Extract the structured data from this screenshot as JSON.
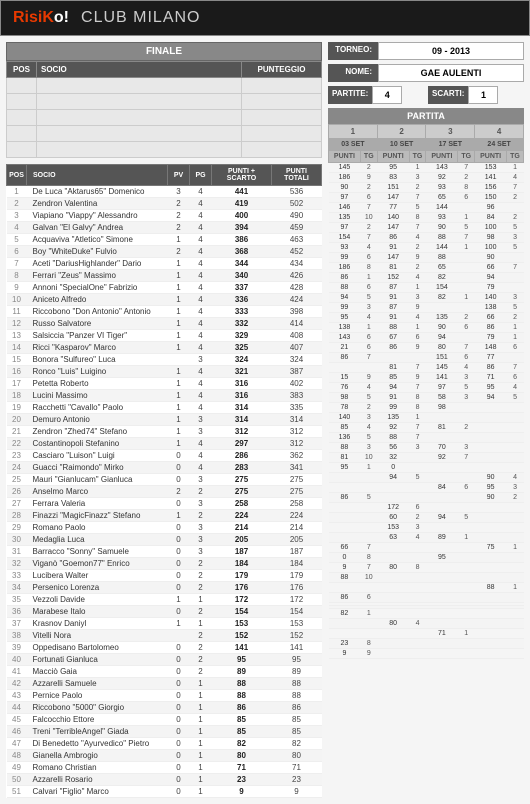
{
  "header": {
    "logo_pre": "Risi",
    "logo_k": "K",
    "logo_post": "o!",
    "club": "CLUB MILANO"
  },
  "finale": {
    "title": "FINALE",
    "cols": [
      "POS",
      "SOCIO",
      "PUNTEGGIO"
    ]
  },
  "torneo": {
    "label": "TORNEO:",
    "value": "09 - 2013"
  },
  "nome": {
    "label": "NOME:",
    "value": "GAE AULENTI"
  },
  "partite": {
    "label": "PARTITE:",
    "value": "4"
  },
  "scarti": {
    "label": "SCARTI:",
    "value": "1"
  },
  "main_cols": [
    "POS",
    "SOCIO",
    "PV",
    "PG",
    "PUNTI + SCARTO",
    "PUNTI TOTALI"
  ],
  "partita": {
    "title": "PARTITA",
    "nums": [
      "1",
      "2",
      "3",
      "4"
    ],
    "dates": [
      "03 SET",
      "10 SET",
      "17 SET",
      "24 SET"
    ],
    "sub": [
      "PUNTI",
      "TG"
    ]
  },
  "rows": [
    {
      "pos": 1,
      "socio": "De Luca \"Aktarus65\" Domenico",
      "pv": 3,
      "pg": 4,
      "ps": 441,
      "pt": 536,
      "p": [
        [
          145,
          2
        ],
        [
          95,
          1
        ],
        [
          143,
          7
        ],
        [
          153,
          1
        ]
      ]
    },
    {
      "pos": 2,
      "socio": "Zendron Valentina",
      "pv": 2,
      "pg": 4,
      "ps": 419,
      "pt": 502,
      "p": [
        [
          186,
          9
        ],
        [
          83,
          3
        ],
        [
          92,
          2
        ],
        [
          141,
          4
        ]
      ]
    },
    {
      "pos": 3,
      "socio": "Viapiano \"Viappy\" Alessandro",
      "pv": 2,
      "pg": 4,
      "ps": 400,
      "pt": 490,
      "p": [
        [
          90,
          2
        ],
        [
          151,
          2
        ],
        [
          93,
          8
        ],
        [
          156,
          7
        ]
      ]
    },
    {
      "pos": 4,
      "socio": "Galvan \"El Galvy\" Andrea",
      "pv": 2,
      "pg": 4,
      "ps": 394,
      "pt": 459,
      "p": [
        [
          97,
          6
        ],
        [
          147,
          7
        ],
        [
          65,
          6
        ],
        [
          150,
          2
        ]
      ]
    },
    {
      "pos": 5,
      "socio": "Acquaviva \"Atletico\" Simone",
      "pv": 1,
      "pg": 4,
      "ps": 386,
      "pt": 463,
      "p": [
        [
          146,
          7
        ],
        [
          77,
          5
        ],
        [
          144,
          ""
        ],
        [
          96,
          ""
        ]
      ]
    },
    {
      "pos": 6,
      "socio": "Boy \"WhiteDuke\" Fulvio",
      "pv": 2,
      "pg": 4,
      "ps": 368,
      "pt": 452,
      "p": [
        [
          135,
          10
        ],
        [
          140,
          8
        ],
        [
          93,
          1
        ],
        [
          84,
          2
        ]
      ]
    },
    {
      "pos": 7,
      "socio": "Aceti \"DariusHighlander\" Dario",
      "pv": 1,
      "pg": 4,
      "ps": 344,
      "pt": 434,
      "p": [
        [
          97,
          2
        ],
        [
          147,
          7
        ],
        [
          90,
          5
        ],
        [
          100,
          5
        ]
      ]
    },
    {
      "pos": 8,
      "socio": "Ferrari \"Zeus\" Massimo",
      "pv": 1,
      "pg": 4,
      "ps": 340,
      "pt": 426,
      "p": [
        [
          154,
          7
        ],
        [
          86,
          4
        ],
        [
          88,
          7
        ],
        [
          98,
          3
        ]
      ]
    },
    {
      "pos": 9,
      "socio": "Annoni \"SpecialOne\" Fabrizio",
      "pv": 1,
      "pg": 4,
      "ps": 337,
      "pt": 428,
      "p": [
        [
          93,
          4
        ],
        [
          91,
          2
        ],
        [
          144,
          1
        ],
        [
          100,
          5
        ]
      ]
    },
    {
      "pos": 10,
      "socio": "Aniceto Alfredo",
      "pv": 1,
      "pg": 4,
      "ps": 336,
      "pt": 424,
      "p": [
        [
          99,
          6
        ],
        [
          147,
          9
        ],
        [
          88,
          ""
        ],
        [
          90,
          ""
        ]
      ]
    },
    {
      "pos": 11,
      "socio": "Riccobono \"Don Antonio\" Antonio",
      "pv": 1,
      "pg": 4,
      "ps": 333,
      "pt": 398,
      "p": [
        [
          186,
          8
        ],
        [
          81,
          2
        ],
        [
          65,
          ""
        ],
        [
          66,
          7
        ]
      ]
    },
    {
      "pos": 12,
      "socio": "Russo Salvatore",
      "pv": 1,
      "pg": 4,
      "ps": 332,
      "pt": 414,
      "p": [
        [
          86,
          1
        ],
        [
          152,
          4
        ],
        [
          82,
          ""
        ],
        [
          94,
          ""
        ]
      ]
    },
    {
      "pos": 13,
      "socio": "Salsiccia \"Panzer VI Tiger\"",
      "pv": 1,
      "pg": 4,
      "ps": 329,
      "pt": 408,
      "p": [
        [
          88,
          6
        ],
        [
          87,
          1
        ],
        [
          154,
          ""
        ],
        [
          79,
          ""
        ]
      ]
    },
    {
      "pos": 14,
      "socio": "Ricci \"Kasparov\" Marco",
      "pv": 1,
      "pg": 4,
      "ps": 325,
      "pt": 407,
      "p": [
        [
          94,
          5
        ],
        [
          91,
          3
        ],
        [
          82,
          1
        ],
        [
          140,
          3
        ]
      ]
    },
    {
      "pos": 15,
      "socio": "Bonora \"Sulfureo\" Luca",
      "pv": "",
      "pg": 3,
      "ps": 324,
      "pt": 324,
      "p": [
        [
          99,
          3
        ],
        [
          87,
          9
        ],
        [
          "",
          ""
        ],
        [
          138,
          5
        ]
      ]
    },
    {
      "pos": 16,
      "socio": "Ronco \"Luis\" Luigino",
      "pv": 1,
      "pg": 4,
      "ps": 321,
      "pt": 387,
      "p": [
        [
          95,
          4
        ],
        [
          91,
          4
        ],
        [
          135,
          2
        ],
        [
          66,
          2
        ]
      ]
    },
    {
      "pos": 17,
      "socio": "Petetta Roberto",
      "pv": 1,
      "pg": 4,
      "ps": 316,
      "pt": 402,
      "p": [
        [
          138,
          1
        ],
        [
          88,
          1
        ],
        [
          90,
          6
        ],
        [
          86,
          1
        ]
      ]
    },
    {
      "pos": 18,
      "socio": "Lucini Massimo",
      "pv": 1,
      "pg": 4,
      "ps": 316,
      "pt": 383,
      "p": [
        [
          143,
          6
        ],
        [
          67,
          6
        ],
        [
          94,
          ""
        ],
        [
          79,
          1
        ]
      ]
    },
    {
      "pos": 19,
      "socio": "Racchetti \"Cavallo\" Paolo",
      "pv": 1,
      "pg": 4,
      "ps": 314,
      "pt": 335,
      "p": [
        [
          21,
          6
        ],
        [
          86,
          9
        ],
        [
          80,
          7
        ],
        [
          148,
          6
        ]
      ]
    },
    {
      "pos": 20,
      "socio": "Demuro Antonio",
      "pv": 1,
      "pg": 3,
      "ps": 314,
      "pt": 314,
      "p": [
        [
          86,
          7
        ],
        [
          "",
          ""
        ],
        [
          151,
          6
        ],
        [
          77,
          ""
        ]
      ]
    },
    {
      "pos": 21,
      "socio": "Zendron \"Zhed74\" Stefano",
      "pv": 1,
      "pg": 3,
      "ps": 312,
      "pt": 312,
      "p": [
        [
          "",
          ""
        ],
        [
          81,
          7
        ],
        [
          145,
          4
        ],
        [
          86,
          7
        ]
      ]
    },
    {
      "pos": 22,
      "socio": "Costantinopoli Stefanino",
      "pv": 1,
      "pg": 4,
      "ps": 297,
      "pt": 312,
      "p": [
        [
          15,
          9
        ],
        [
          85,
          9
        ],
        [
          141,
          3
        ],
        [
          71,
          6
        ]
      ]
    },
    {
      "pos": 23,
      "socio": "Casciaro \"Luison\" Luigi",
      "pv": 0,
      "pg": 4,
      "ps": 286,
      "pt": 362,
      "p": [
        [
          76,
          4
        ],
        [
          94,
          7
        ],
        [
          97,
          5
        ],
        [
          95,
          4
        ]
      ]
    },
    {
      "pos": 24,
      "socio": "Guacci \"Raimondo\" Mirko",
      "pv": 0,
      "pg": 4,
      "ps": 283,
      "pt": 341,
      "p": [
        [
          98,
          5
        ],
        [
          91,
          8
        ],
        [
          58,
          3
        ],
        [
          94,
          5
        ]
      ]
    },
    {
      "pos": 25,
      "socio": "Mauri \"Gianlucam\" Gianluca",
      "pv": 0,
      "pg": 3,
      "ps": 275,
      "pt": 275,
      "p": [
        [
          78,
          2
        ],
        [
          99,
          8
        ],
        [
          98,
          ""
        ],
        [
          "",
          ""
        ]
      ]
    },
    {
      "pos": 26,
      "socio": "Anselmo Marco",
      "pv": 2,
      "pg": 2,
      "ps": 275,
      "pt": 275,
      "p": [
        [
          140,
          3
        ],
        [
          135,
          1
        ],
        [
          "",
          ""
        ],
        [
          "",
          ""
        ]
      ]
    },
    {
      "pos": 27,
      "socio": "Ferrara Valeria",
      "pv": 0,
      "pg": 3,
      "ps": 258,
      "pt": 258,
      "p": [
        [
          85,
          4
        ],
        [
          92,
          7
        ],
        [
          81,
          2
        ],
        [
          "",
          ""
        ]
      ]
    },
    {
      "pos": 28,
      "socio": "Finazzi \"MagicFinazz\" Stefano",
      "pv": 1,
      "pg": 2,
      "ps": 224,
      "pt": 224,
      "p": [
        [
          136,
          5
        ],
        [
          88,
          7
        ],
        [
          "",
          ""
        ],
        [
          "",
          ""
        ]
      ]
    },
    {
      "pos": 29,
      "socio": "Romano Paolo",
      "pv": 0,
      "pg": 3,
      "ps": 214,
      "pt": 214,
      "p": [
        [
          88,
          3
        ],
        [
          56,
          3
        ],
        [
          70,
          3
        ],
        [
          "",
          ""
        ]
      ]
    },
    {
      "pos": 30,
      "socio": "Medaglia Luca",
      "pv": 0,
      "pg": 3,
      "ps": 205,
      "pt": 205,
      "p": [
        [
          81,
          10
        ],
        [
          32,
          ""
        ],
        [
          92,
          7
        ],
        [
          "",
          ""
        ]
      ]
    },
    {
      "pos": 31,
      "socio": "Barracco \"Sonny\" Samuele",
      "pv": 0,
      "pg": 3,
      "ps": 187,
      "pt": 187,
      "p": [
        [
          95,
          1
        ],
        [
          0,
          ""
        ],
        [
          "",
          ""
        ],
        [
          "",
          ""
        ]
      ]
    },
    {
      "pos": 32,
      "socio": "Viganò \"Goemon77\" Enrico",
      "pv": 0,
      "pg": 2,
      "ps": 184,
      "pt": 184,
      "p": [
        [
          "",
          ""
        ],
        [
          94,
          5
        ],
        [
          "",
          ""
        ],
        [
          90,
          4
        ]
      ]
    },
    {
      "pos": 33,
      "socio": "Lucibera Walter",
      "pv": 0,
      "pg": 2,
      "ps": 179,
      "pt": 179,
      "p": [
        [
          "",
          ""
        ],
        [
          "",
          ""
        ],
        [
          84,
          6
        ],
        [
          95,
          3
        ]
      ]
    },
    {
      "pos": 34,
      "socio": "Persenico Lorenza",
      "pv": 0,
      "pg": 2,
      "ps": 176,
      "pt": 176,
      "p": [
        [
          86,
          5
        ],
        [
          "",
          ""
        ],
        [
          "",
          ""
        ],
        [
          90,
          2
        ]
      ]
    },
    {
      "pos": 35,
      "socio": "Vezzoli Davide",
      "pv": 1,
      "pg": 1,
      "ps": 172,
      "pt": 172,
      "p": [
        [
          "",
          ""
        ],
        [
          172,
          6
        ],
        [
          "",
          ""
        ],
        [
          "",
          ""
        ]
      ]
    },
    {
      "pos": 36,
      "socio": "Marabese Italo",
      "pv": 0,
      "pg": 2,
      "ps": 154,
      "pt": 154,
      "p": [
        [
          "",
          ""
        ],
        [
          60,
          2
        ],
        [
          94,
          5
        ],
        [
          "",
          ""
        ]
      ]
    },
    {
      "pos": 37,
      "socio": "Krasnov Daniyl",
      "pv": 1,
      "pg": 1,
      "ps": 153,
      "pt": 153,
      "p": [
        [
          "",
          ""
        ],
        [
          153,
          3
        ],
        [
          "",
          ""
        ],
        [
          "",
          ""
        ]
      ]
    },
    {
      "pos": 38,
      "socio": "Vitelli Nora",
      "pv": "",
      "pg": 2,
      "ps": 152,
      "pt": 152,
      "p": [
        [
          "",
          ""
        ],
        [
          63,
          4
        ],
        [
          89,
          1
        ],
        [
          "",
          ""
        ]
      ]
    },
    {
      "pos": 39,
      "socio": "Oppedisano Bartolomeo",
      "pv": 0,
      "pg": 2,
      "ps": 141,
      "pt": 141,
      "p": [
        [
          66,
          7
        ],
        [
          "",
          ""
        ],
        [
          "",
          ""
        ],
        [
          75,
          1
        ]
      ]
    },
    {
      "pos": 40,
      "socio": "Fortunati Gianluca",
      "pv": 0,
      "pg": 2,
      "ps": 95,
      "pt": 95,
      "p": [
        [
          0,
          8
        ],
        [
          "",
          ""
        ],
        [
          95,
          ""
        ],
        [
          "",
          ""
        ]
      ]
    },
    {
      "pos": 41,
      "socio": "Macciò Gaia",
      "pv": 0,
      "pg": 2,
      "ps": 89,
      "pt": 89,
      "p": [
        [
          9,
          7
        ],
        [
          80,
          8
        ],
        [
          "",
          ""
        ],
        [
          "",
          ""
        ]
      ]
    },
    {
      "pos": 42,
      "socio": "Azzarelli Samuele",
      "pv": 0,
      "pg": 1,
      "ps": 88,
      "pt": 88,
      "p": [
        [
          88,
          10
        ],
        [
          "",
          ""
        ],
        [
          "",
          ""
        ],
        [
          "",
          ""
        ]
      ]
    },
    {
      "pos": 43,
      "socio": "Pernice Paolo",
      "pv": 0,
      "pg": 1,
      "ps": 88,
      "pt": 88,
      "p": [
        [
          "",
          ""
        ],
        [
          "",
          ""
        ],
        [
          "",
          ""
        ],
        [
          88,
          1
        ]
      ]
    },
    {
      "pos": 44,
      "socio": "Riccobono \"5000\" Giorgio",
      "pv": 0,
      "pg": 1,
      "ps": 86,
      "pt": 86,
      "p": [
        [
          86,
          6
        ],
        [
          "",
          ""
        ],
        [
          "",
          ""
        ],
        [
          "",
          ""
        ]
      ]
    },
    {
      "pos": 45,
      "socio": "Falcocchio Ettore",
      "pv": 0,
      "pg": 1,
      "ps": 85,
      "pt": 85,
      "p": [
        [
          "",
          ""
        ],
        [
          "",
          ""
        ],
        [
          "",
          ""
        ],
        [
          "",
          ""
        ]
      ]
    },
    {
      "pos": 46,
      "socio": "Treni \"TerribleAngel\" Giada",
      "pv": 0,
      "pg": 1,
      "ps": 85,
      "pt": 85,
      "p": [
        [
          "",
          ""
        ],
        [
          "",
          ""
        ],
        [
          "",
          ""
        ],
        [
          "",
          ""
        ]
      ]
    },
    {
      "pos": 47,
      "socio": "Di Benedetto \"Ayurvedico\" Pietro",
      "pv": 0,
      "pg": 1,
      "ps": 82,
      "pt": 82,
      "p": [
        [
          82,
          1
        ],
        [
          "",
          ""
        ],
        [
          "",
          ""
        ],
        [
          "",
          ""
        ]
      ]
    },
    {
      "pos": 48,
      "socio": "Gianella Ambrogio",
      "pv": 0,
      "pg": 1,
      "ps": 80,
      "pt": 80,
      "p": [
        [
          "",
          ""
        ],
        [
          80,
          4
        ],
        [
          "",
          ""
        ],
        [
          "",
          ""
        ]
      ]
    },
    {
      "pos": 49,
      "socio": "Romano Christian",
      "pv": 0,
      "pg": 1,
      "ps": 71,
      "pt": 71,
      "p": [
        [
          "",
          ""
        ],
        [
          "",
          ""
        ],
        [
          71,
          1
        ],
        [
          "",
          ""
        ]
      ]
    },
    {
      "pos": 50,
      "socio": "Azzarelli Rosario",
      "pv": 0,
      "pg": 1,
      "ps": 23,
      "pt": 23,
      "p": [
        [
          23,
          8
        ],
        [
          "",
          ""
        ],
        [
          "",
          ""
        ],
        [
          "",
          ""
        ]
      ]
    },
    {
      "pos": 51,
      "socio": "Calvari \"Figlio\" Marco",
      "pv": 0,
      "pg": 1,
      "ps": 9,
      "pt": 9,
      "p": [
        [
          9,
          9
        ],
        [
          "",
          ""
        ],
        [
          "",
          ""
        ],
        [
          "",
          ""
        ]
      ]
    }
  ]
}
